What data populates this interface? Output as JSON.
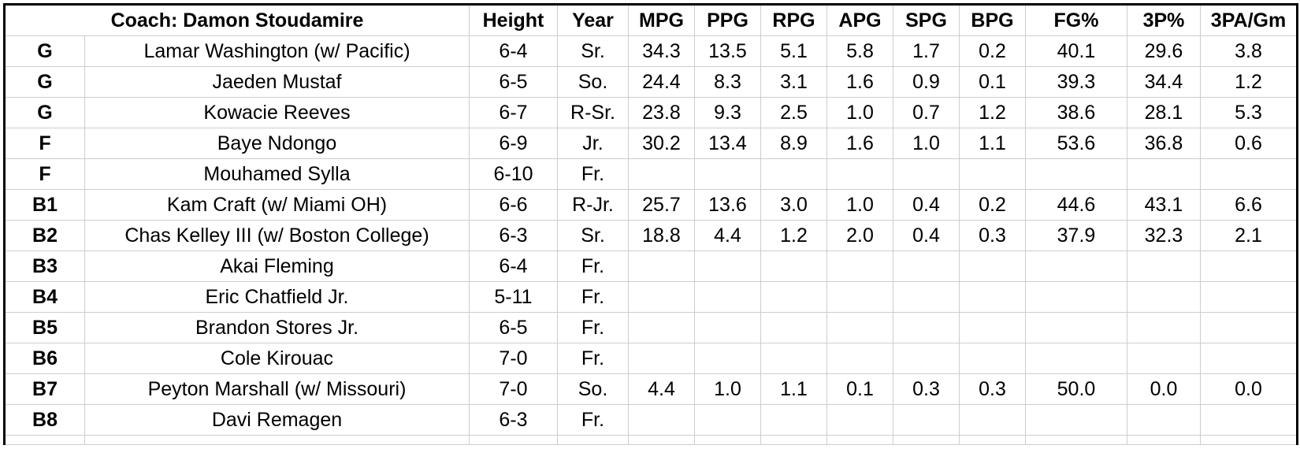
{
  "sheet": {
    "coach_label": "Coach: Damon Stoudamire",
    "stat_columns": [
      "Height",
      "Year",
      "MPG",
      "PPG",
      "RPG",
      "APG",
      "SPG",
      "BPG",
      "FG%",
      "3P%",
      "3PA/Gm"
    ],
    "rows": [
      {
        "pos": "G",
        "name": "Lamar Washington (w/ Pacific)",
        "height": "6-4",
        "year": "Sr.",
        "stats": [
          "34.3",
          "13.5",
          "5.1",
          "5.8",
          "1.7",
          "0.2",
          "40.1",
          "29.6",
          "3.8"
        ],
        "group": "starter"
      },
      {
        "pos": "G",
        "name": "Jaeden Mustaf",
        "height": "6-5",
        "year": "So.",
        "stats": [
          "24.4",
          "8.3",
          "3.1",
          "1.6",
          "0.9",
          "0.1",
          "39.3",
          "34.4",
          "1.2"
        ],
        "group": "starter"
      },
      {
        "pos": "G",
        "name": "Kowacie Reeves",
        "height": "6-7",
        "year": "R-Sr.",
        "stats": [
          "23.8",
          "9.3",
          "2.5",
          "1.0",
          "0.7",
          "1.2",
          "38.6",
          "28.1",
          "5.3"
        ],
        "group": "starter"
      },
      {
        "pos": "F",
        "name": "Baye Ndongo",
        "height": "6-9",
        "year": "Jr.",
        "stats": [
          "30.2",
          "13.4",
          "8.9",
          "1.6",
          "1.0",
          "1.1",
          "53.6",
          "36.8",
          "0.6"
        ],
        "group": "starter"
      },
      {
        "pos": "F",
        "name": "Mouhamed Sylla",
        "height": "6-10",
        "year": "Fr.",
        "stats": [
          "",
          "",
          "",
          "",
          "",
          "",
          "",
          "",
          ""
        ],
        "group": "starter"
      },
      {
        "pos": "B1",
        "name": "Kam Craft (w/ Miami OH)",
        "height": "6-6",
        "year": "R-Jr.",
        "stats": [
          "25.7",
          "13.6",
          "3.0",
          "1.0",
          "0.4",
          "0.2",
          "44.6",
          "43.1",
          "6.6"
        ],
        "group": "bench"
      },
      {
        "pos": "B2",
        "name": "Chas Kelley III (w/ Boston College)",
        "height": "6-3",
        "year": "Sr.",
        "stats": [
          "18.8",
          "4.4",
          "1.2",
          "2.0",
          "0.4",
          "0.3",
          "37.9",
          "32.3",
          "2.1"
        ],
        "group": "bench"
      },
      {
        "pos": "B3",
        "name": "Akai Fleming",
        "height": "6-4",
        "year": "Fr.",
        "stats": [
          "",
          "",
          "",
          "",
          "",
          "",
          "",
          "",
          ""
        ],
        "group": "bench"
      },
      {
        "pos": "B4",
        "name": "Eric Chatfield Jr.",
        "height": "5-11",
        "year": "Fr.",
        "stats": [
          "",
          "",
          "",
          "",
          "",
          "",
          "",
          "",
          ""
        ],
        "group": "bench"
      },
      {
        "pos": "B5",
        "name": "Brandon Stores Jr.",
        "height": "6-5",
        "year": "Fr.",
        "stats": [
          "",
          "",
          "",
          "",
          "",
          "",
          "",
          "",
          ""
        ],
        "group": "bench"
      },
      {
        "pos": "B6",
        "name": "Cole Kirouac",
        "height": "7-0",
        "year": "Fr.",
        "stats": [
          "",
          "",
          "",
          "",
          "",
          "",
          "",
          "",
          ""
        ],
        "group": "bench"
      },
      {
        "pos": "B7",
        "name": "Peyton Marshall (w/ Missouri)",
        "height": "7-0",
        "year": "So.",
        "stats": [
          "4.4",
          "1.0",
          "1.1",
          "0.1",
          "0.3",
          "0.3",
          "50.0",
          "0.0",
          "0.0"
        ],
        "group": "bench"
      },
      {
        "pos": "B8",
        "name": "Davi Remagen",
        "height": "6-3",
        "year": "Fr.",
        "stats": [
          "",
          "",
          "",
          "",
          "",
          "",
          "",
          "",
          ""
        ],
        "group": "bench"
      }
    ],
    "colors": {
      "coach_cell_background": "#d9d9d9",
      "gridline": "#cdcdcd",
      "thick_border": "#000000",
      "text": "#000000"
    }
  }
}
